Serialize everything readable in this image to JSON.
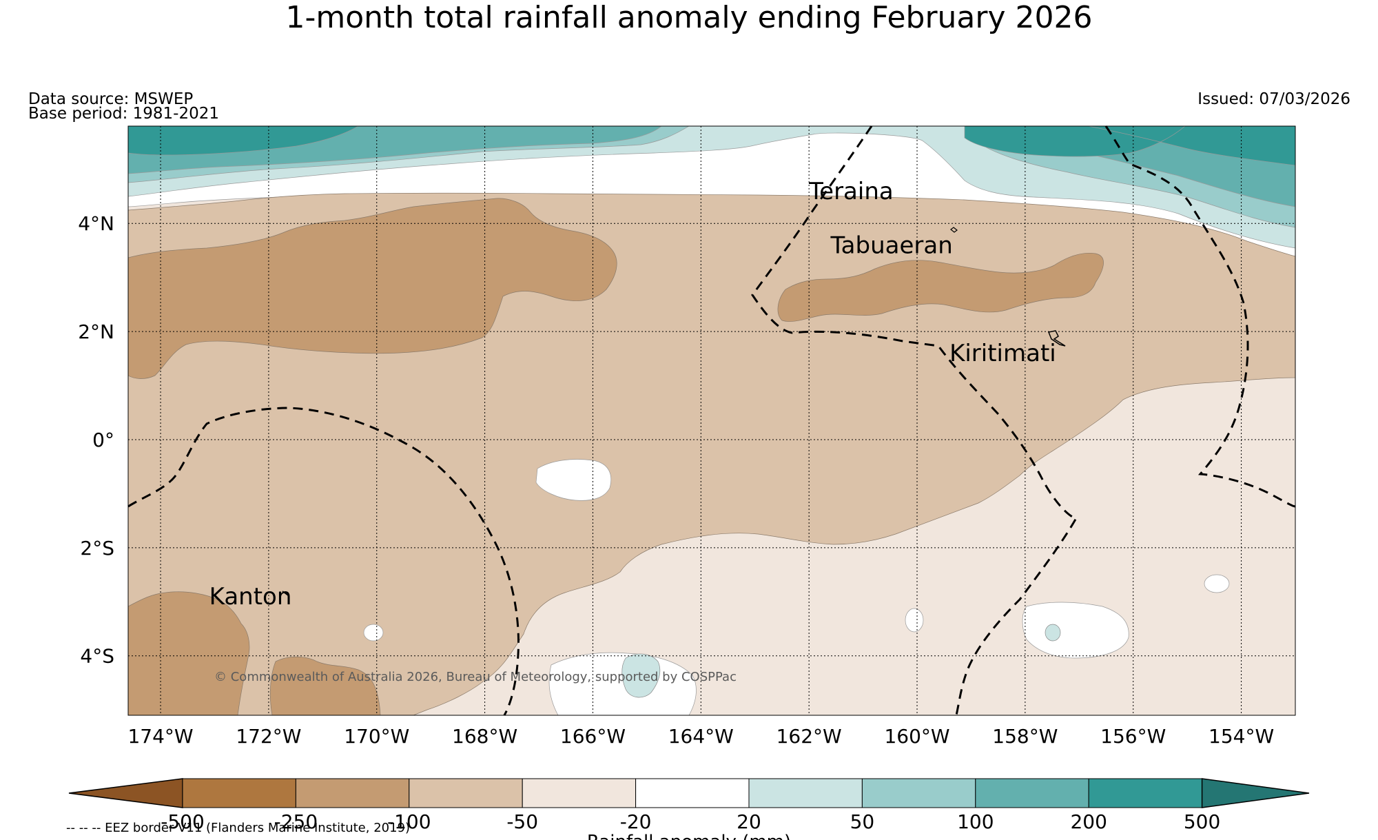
{
  "title": "1-month total rainfall anomaly ending February 2026",
  "data_source": "Data source: MSWEP",
  "base_period": "Base period: 1981-2021",
  "issued": "Issued: 07/03/2026",
  "copyright": "© Commonwealth of Australia 2026, Bureau of Meteorology, supported by COSPPac",
  "eez_note": "-- -- -- EEZ border V11 (Flanders Marine Institute, 2019)",
  "map": {
    "lon_range": [
      -174.6,
      -153.0
    ],
    "lat_range": [
      -5.1,
      5.8
    ],
    "lat_ticks": [
      {
        "value": 4,
        "label": "4°N"
      },
      {
        "value": 2,
        "label": "2°N"
      },
      {
        "value": 0,
        "label": "0°"
      },
      {
        "value": -2,
        "label": "2°S"
      },
      {
        "value": -4,
        "label": "4°S"
      }
    ],
    "lon_ticks": [
      {
        "value": -174,
        "label": "174°W"
      },
      {
        "value": -172,
        "label": "172°W"
      },
      {
        "value": -170,
        "label": "170°W"
      },
      {
        "value": -168,
        "label": "168°W"
      },
      {
        "value": -166,
        "label": "166°W"
      },
      {
        "value": -164,
        "label": "164°W"
      },
      {
        "value": -162,
        "label": "162°W"
      },
      {
        "value": -160,
        "label": "160°W"
      },
      {
        "value": -158,
        "label": "158°W"
      },
      {
        "value": -156,
        "label": "156°W"
      },
      {
        "value": -154,
        "label": "154°W"
      }
    ],
    "places": [
      {
        "name": "Teraina",
        "lon": -162.0,
        "lat": 4.45
      },
      {
        "name": "Tabuaeran",
        "lon": -161.6,
        "lat": 3.45
      },
      {
        "name": "Kiritimati",
        "lon": -159.4,
        "lat": 1.45
      },
      {
        "name": "Kanton",
        "lon": -173.1,
        "lat": -3.05
      }
    ]
  },
  "colorbar": {
    "ticks": [
      "-500",
      "-250",
      "-100",
      "-50",
      "-20",
      "20",
      "50",
      "100",
      "200",
      "500"
    ],
    "colors": [
      "#8c5424",
      "#ae773f",
      "#c49b72",
      "#dbc2a9",
      "#f1e6dd",
      "#ffffff",
      "#cbe4e3",
      "#99cccb",
      "#63b0ae",
      "#319995",
      "#247673"
    ],
    "label": "Rainfall anomaly (mm)"
  }
}
